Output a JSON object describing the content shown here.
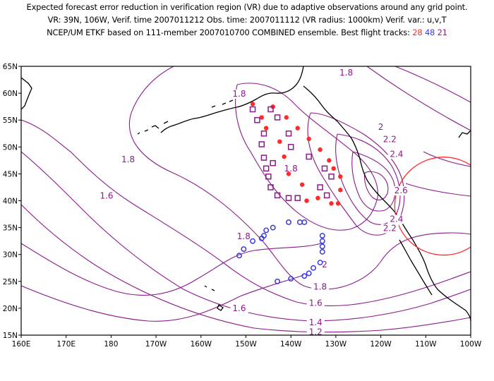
{
  "title": {
    "line1": "Expected forecast error reduction in verification region (VR) due to adaptive observations around any grid point.",
    "line2": "VR: 39N, 106W, Verif. time 2007011212  Obs. time: 2007011112 (VR radius: 1000km)   Verif. var.: u,v,T",
    "line3_prefix": "NCEP/UM ETKF based on 111-member 2007010700 COMBINED ensemble.  Best flight tracks:",
    "track_red": "28",
    "track_blue": "48",
    "track_purple": "21"
  },
  "colors": {
    "contour": "#8b1a8b",
    "red": "#ff2a2a",
    "blue": "#3a3adf",
    "purple": "#8b1a8b",
    "verification_circle": "#ff2a2a",
    "coast": "#000000"
  },
  "axes": {
    "lon_ticks": [
      "160E",
      "170E",
      "180",
      "170W",
      "160W",
      "150W",
      "140W",
      "130W",
      "120W",
      "110W",
      "100W"
    ],
    "lat_ticks": [
      "15N",
      "20N",
      "25N",
      "30N",
      "35N",
      "40N",
      "45N",
      "50N",
      "55N",
      "60N",
      "65N"
    ]
  },
  "contour_labels": [
    {
      "text": "1.8",
      "lon": -151.5,
      "lat": 59.5
    },
    {
      "text": "1.8",
      "lon": -127.7,
      "lat": 63.4
    },
    {
      "text": "1.8",
      "lon": -176.2,
      "lat": 47.3
    },
    {
      "text": "1.6",
      "lon": -181.0,
      "lat": 40.5
    },
    {
      "text": "1.6",
      "lon": -151.5,
      "lat": 19.6
    },
    {
      "text": "1.8",
      "lon": -150.5,
      "lat": 33.0
    },
    {
      "text": "1.8",
      "lon": -140.0,
      "lat": 45.6
    },
    {
      "text": "2",
      "lon": -120.0,
      "lat": 53.3
    },
    {
      "text": "2.2",
      "lon": -118.0,
      "lat": 51.0
    },
    {
      "text": "2.4",
      "lon": -116.5,
      "lat": 48.3
    },
    {
      "text": "2.6",
      "lon": -115.5,
      "lat": 41.5
    },
    {
      "text": "2.4",
      "lon": -116.5,
      "lat": 36.2
    },
    {
      "text": "2.2",
      "lon": -118.0,
      "lat": 34.5
    },
    {
      "text": "2",
      "lon": -132.5,
      "lat": 27.7
    },
    {
      "text": "1.8",
      "lon": -133.5,
      "lat": 23.6
    },
    {
      "text": "1.6",
      "lon": -134.5,
      "lat": 20.6
    },
    {
      "text": "1.4",
      "lon": -134.5,
      "lat": 17.0
    },
    {
      "text": "1.2",
      "lon": -134.5,
      "lat": 15.2
    }
  ],
  "verification_region": {
    "lon": -106,
    "lat": 39,
    "radius_deg": 10.9
  },
  "tracks": {
    "red": [
      [
        -148.5,
        58.0
      ],
      [
        -146.5,
        55.5
      ],
      [
        -144.0,
        57.5
      ],
      [
        -141.0,
        55.5
      ],
      [
        -145.5,
        53.5
      ],
      [
        -138.5,
        53.5
      ],
      [
        -142.5,
        51.0
      ],
      [
        -136.0,
        51.5
      ],
      [
        -141.5,
        48.2
      ],
      [
        -133.5,
        49.5
      ],
      [
        -131.5,
        47.5
      ],
      [
        -140.5,
        45.0
      ],
      [
        -130.5,
        46.0
      ],
      [
        -129.0,
        44.5
      ],
      [
        -137.5,
        43.0
      ],
      [
        -129.0,
        42.0
      ],
      [
        -136.5,
        40.0
      ],
      [
        -134.0,
        40.5
      ],
      [
        -131.0,
        39.5
      ],
      [
        -129.5,
        39.5
      ]
    ],
    "purple": [
      [
        -148.5,
        57.0
      ],
      [
        -144.5,
        57.0
      ],
      [
        -147.5,
        55.0
      ],
      [
        -143.0,
        55.5
      ],
      [
        -146.0,
        52.5
      ],
      [
        -140.5,
        52.5
      ],
      [
        -146.5,
        50.5
      ],
      [
        -140.0,
        50.0
      ],
      [
        -136.0,
        48.2
      ],
      [
        -146.0,
        48.0
      ],
      [
        -144.0,
        47.0
      ],
      [
        -145.5,
        46.0
      ],
      [
        -132.5,
        46.0
      ],
      [
        -145.0,
        44.5
      ],
      [
        -131.0,
        44.5
      ],
      [
        -144.5,
        42.5
      ],
      [
        -133.5,
        42.5
      ],
      [
        -143.0,
        41.0
      ],
      [
        -132.0,
        41.0
      ],
      [
        -140.5,
        40.5
      ],
      [
        -138.5,
        40.5
      ]
    ],
    "blue": [
      [
        -151.5,
        29.8
      ],
      [
        -150.5,
        31.0
      ],
      [
        -148.5,
        32.5
      ],
      [
        -146.5,
        33.0
      ],
      [
        -146.0,
        33.5
      ],
      [
        -145.5,
        34.5
      ],
      [
        -144.0,
        35.0
      ],
      [
        -140.5,
        36.0
      ],
      [
        -138.0,
        36.0
      ],
      [
        -137.0,
        36.0
      ],
      [
        -133.0,
        33.5
      ],
      [
        -133.0,
        32.5
      ],
      [
        -133.0,
        31.5
      ],
      [
        -133.0,
        30.5
      ],
      [
        -133.5,
        28.5
      ],
      [
        -135.0,
        27.5
      ],
      [
        -136.0,
        26.5
      ],
      [
        -137.0,
        26.0
      ],
      [
        -140.0,
        25.5
      ],
      [
        -143.0,
        25.0
      ]
    ]
  }
}
